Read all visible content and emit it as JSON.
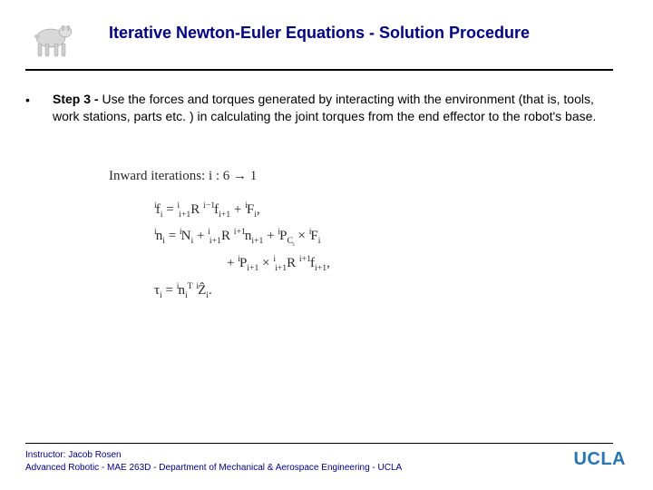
{
  "title": "Iterative Newton-Euler Equations - Solution Procedure",
  "bullet": {
    "step_label": "Step 3 - ",
    "text": "Use the forces and torques generated by interacting with the environment (that is, tools, work stations, parts etc. )  in calculating the joint torques from the end effector to the robot's base."
  },
  "equations": {
    "iteration_label": "Inward iterations:   i : 6 → 1",
    "line1_html": "<span class='pre-sup'>i</span>f<span class='sub'>i</span> = <span class='pre-sup'>i</span><span class='sub'>i+1</span>R <span class='pre-sup'>i−1</span>f<span class='sub'>i+1</span> + <span class='pre-sup'>i</span>F<span class='sub'>i</span>,",
    "line2_html": "<span class='pre-sup'>i</span>n<span class='sub'>i</span> = <span class='pre-sup'>i</span>N<span class='sub'>i</span> + <span class='pre-sup'>i</span><span class='sub'>i+1</span>R <span class='pre-sup'>i+1</span>n<span class='sub'>i+1</span> + <span class='pre-sup'>i</span>P<span class='sub'>C<span class='sub'>i</span></span> × <span class='pre-sup'>i</span>F<span class='sub'>i</span>",
    "line3_html": "+ <span class='pre-sup'>i</span>P<span class='sub'>i+1</span> × <span class='pre-sup'>i</span><span class='sub'>i+1</span>R <span class='pre-sup'>i+1</span>f<span class='sub'>i+1</span>,",
    "line4_html": "τ<span class='sub'>i</span> = <span class='pre-sup'>i</span>n<span class='sub'>i</span><span class='sup'>T</span> <span class='pre-sup'>i</span>Ẑ<span class='sub'>i</span>."
  },
  "footer": {
    "line1": "Instructor: Jacob Rosen",
    "line2": "Advanced Robotic - MAE 263D - Department of Mechanical & Aerospace Engineering - UCLA"
  },
  "logo_text": "UCLA",
  "colors": {
    "title": "#000080",
    "footer": "#000080",
    "logo": "#2774ae"
  }
}
